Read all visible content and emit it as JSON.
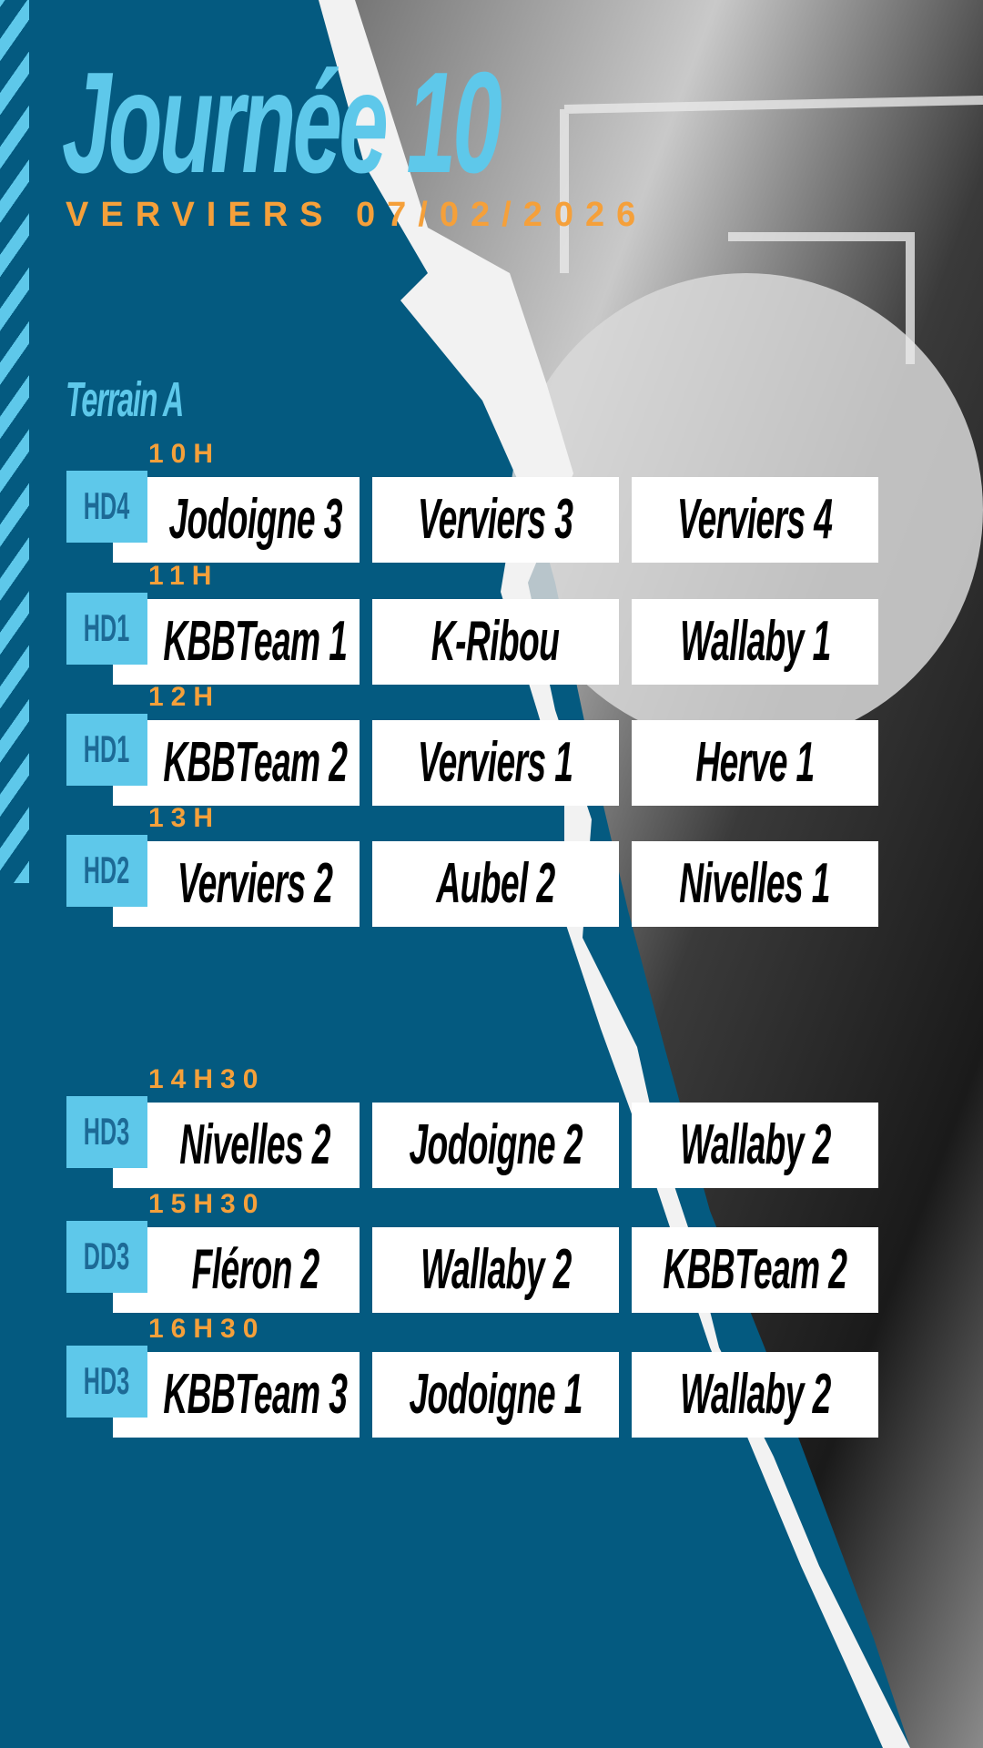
{
  "header": {
    "title": "Journée 10",
    "subtitle": "VERVIERS 07/02/2026"
  },
  "terrain": "Terrain A",
  "colors": {
    "background": "#045a80",
    "accent_light_blue": "#5ec8ea",
    "accent_orange": "#f5a03a",
    "badge_text": "#1d6a96"
  },
  "matches": [
    {
      "time": "10H",
      "division": "HD4",
      "teams": [
        "Jodoigne 3",
        "Verviers 3",
        "Verviers 4"
      ]
    },
    {
      "time": "11H",
      "division": "HD1",
      "teams": [
        "KBBTeam 1",
        "K-Ribou",
        "Wallaby 1"
      ]
    },
    {
      "time": "12H",
      "division": "HD1",
      "teams": [
        "KBBTeam 2",
        "Verviers 1",
        "Herve 1"
      ]
    },
    {
      "time": "13H",
      "division": "HD2",
      "teams": [
        "Verviers 2",
        "Aubel 2",
        "Nivelles 1"
      ]
    },
    {
      "time": "14H30",
      "division": "HD3",
      "teams": [
        "Nivelles 2",
        "Jodoigne 2",
        "Wallaby 2"
      ]
    },
    {
      "time": "15H30",
      "division": "DD3",
      "teams": [
        "Fléron 2",
        "Wallaby 2",
        "KBBTeam 2"
      ]
    },
    {
      "time": "16H30",
      "division": "HD3",
      "teams": [
        "KBBTeam 3",
        "Jodoigne 1",
        "Wallaby 2"
      ]
    }
  ]
}
